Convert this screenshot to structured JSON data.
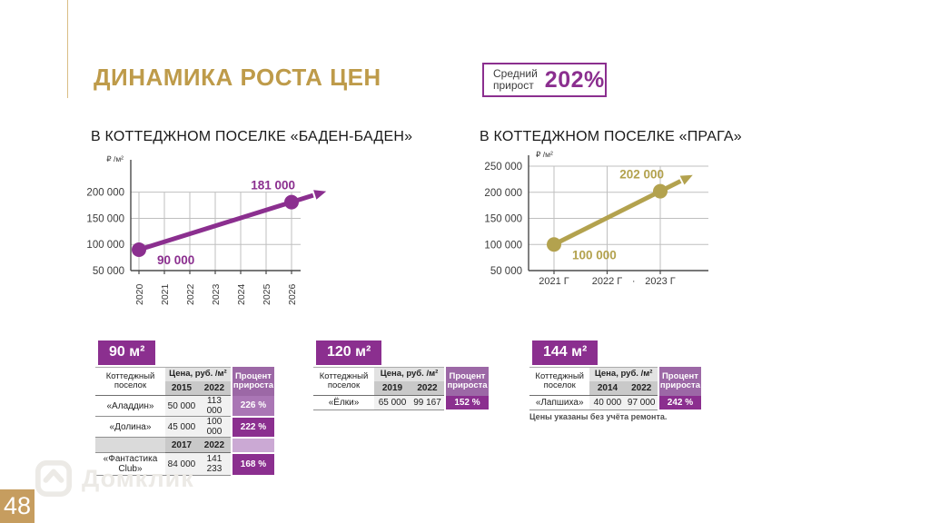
{
  "slide": {
    "title": "ДИНАМИКА РОСТА ЦЕН",
    "avg_badge": {
      "label_line1": "Средний",
      "label_line2": "прирост",
      "value": "202%"
    },
    "footnote": "Цены указаны без учёта ремонта.",
    "watermark_text": "Домклик",
    "page_number": "48"
  },
  "colors": {
    "gold_title": "#BE9B4A",
    "purple": "#8B2F8F",
    "chart_gold": "#B3A24E",
    "pct_header": "#9C68A6",
    "pct_light": "#AA76B5",
    "pct_pale": "#CBA9D4",
    "page_badge_gold": "#C69D5F"
  },
  "chart_data": [
    {
      "type": "line",
      "title": "В КОТТЕДЖНОМ ПОСЕЛКЕ «БАДЕН-БАДЕН»",
      "ylabel": "₽ /м²",
      "xlabel": "",
      "grid": true,
      "legend": "none",
      "categories": [
        "2020",
        "2021",
        "2022",
        "2023",
        "2024",
        "2025",
        "2026"
      ],
      "points": [
        {
          "x": "2020",
          "value": 90000,
          "label": "90 000"
        },
        {
          "x": "2026",
          "value": 181000,
          "label": "181 000"
        }
      ],
      "yticks": [
        50000,
        100000,
        150000,
        200000
      ],
      "ytick_labels": [
        "50 000",
        "100 000",
        "150 000",
        "200 000"
      ],
      "ylim": [
        50000,
        255000
      ],
      "color": "#8B2F8F",
      "arrow": true
    },
    {
      "type": "line",
      "title": "В КОТТЕДЖНОМ ПОСЕЛКЕ «ПРАГА»",
      "ylabel": "₽ /м²",
      "xlabel": "",
      "grid": true,
      "legend": "none",
      "categories": [
        "2021 Г",
        "2022 Г",
        "2023 Г"
      ],
      "between_tick_label": "·",
      "points": [
        {
          "x": "2021 Г",
          "value": 100000,
          "label": "100 000"
        },
        {
          "x": "2023 Г",
          "value": 202000,
          "label": "202 000"
        }
      ],
      "yticks": [
        50000,
        100000,
        150000,
        200000,
        250000
      ],
      "ytick_labels": [
        "50 000",
        "100 000",
        "150 000",
        "200 000",
        "250 000"
      ],
      "ylim": [
        50000,
        264000
      ],
      "color": "#B3A24E",
      "arrow": true
    }
  ],
  "tables": [
    {
      "size_label": "90 м²",
      "col_headers": {
        "name": "Коттеджный поселок",
        "price": "Цена, руб. /м²",
        "pct": "Процент прироста"
      },
      "year_headers": [
        "2015",
        "2022"
      ],
      "rows": [
        {
          "name": "«Аладдин»",
          "v1": "50 000",
          "v2": "113 000",
          "pct": "226 %"
        },
        {
          "name": "«Долина»",
          "v1": "45 000",
          "v2": "100 000",
          "pct": "222 %"
        }
      ],
      "mid_year_headers": [
        "2017",
        "2022"
      ],
      "rows2": [
        {
          "name": "«Фантастика Club»",
          "v1": "84 000",
          "v2": "141 233",
          "pct": "168 %"
        }
      ]
    },
    {
      "size_label": "120 м²",
      "col_headers": {
        "name": "Коттеджный поселок",
        "price": "Цена, руб. /м²",
        "pct": "Процент прироста"
      },
      "year_headers": [
        "2019",
        "2022"
      ],
      "rows": [
        {
          "name": "«Ёлки»",
          "v1": "65 000",
          "v2": "99 167",
          "pct": "152 %"
        }
      ]
    },
    {
      "size_label": "144 м²",
      "col_headers": {
        "name": "Коттеджный поселок",
        "price": "Цена, руб. /м²",
        "pct": "Процент прироста"
      },
      "year_headers": [
        "2014",
        "2022"
      ],
      "rows": [
        {
          "name": "«Лапшиха»",
          "v1": "40 000",
          "v2": "97 000",
          "pct": "242 %"
        }
      ]
    }
  ]
}
